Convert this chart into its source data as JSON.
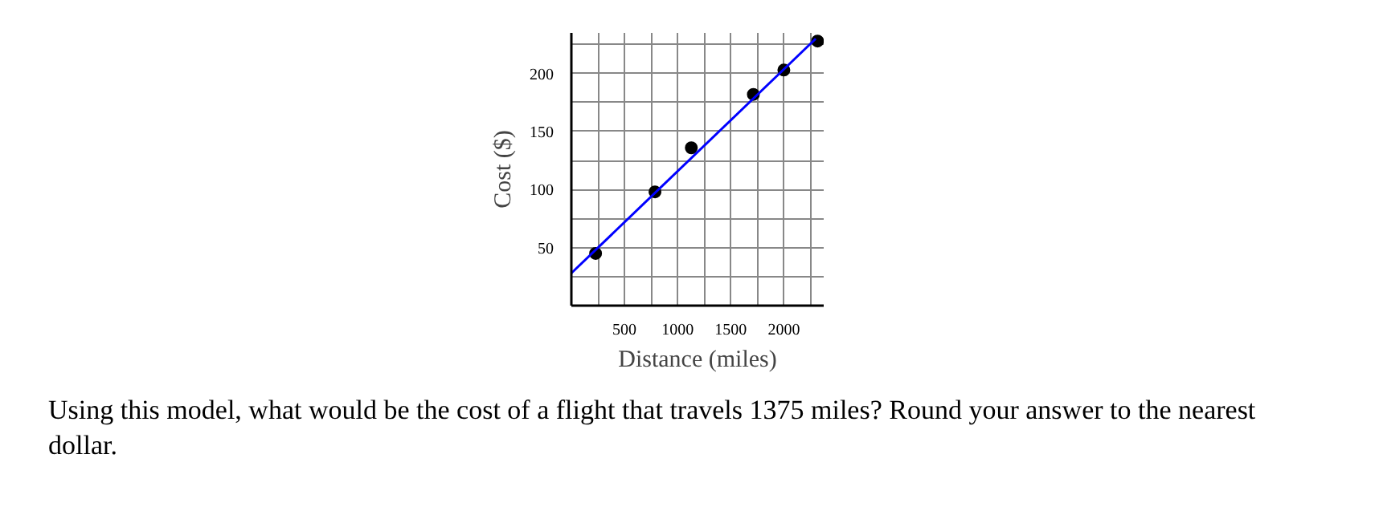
{
  "chart_data": {
    "type": "scatter",
    "xlabel": "Distance (miles)",
    "ylabel": "Cost ($)",
    "xlim": [
      0,
      2375
    ],
    "ylim": [
      0,
      235
    ],
    "xticks": [
      {
        "value": 250,
        "label": null
      },
      500,
      {
        "value": 750,
        "label": null
      },
      1000,
      {
        "value": 1250,
        "label": null
      },
      1500,
      {
        "value": 1750,
        "label": null
      },
      2000,
      {
        "value": 2250,
        "label": null
      }
    ],
    "yticks": [
      {
        "value": 25,
        "label": null
      },
      50,
      {
        "value": 75,
        "label": null
      },
      100,
      {
        "value": 125,
        "label": null
      },
      150,
      {
        "value": 175,
        "label": null
      },
      200,
      {
        "value": 225,
        "label": null
      }
    ],
    "grid": true,
    "marker": "circle",
    "series": [
      {
        "color": "#000000",
        "x": [
          228,
          787,
          1129,
          1713,
          2000,
          2317
        ],
        "values": [
          45,
          98,
          136,
          182,
          203,
          228
        ]
      },
      {
        "type": "line",
        "color": "#0000ff",
        "x": [
          0,
          2300
        ],
        "values": [
          28,
          230
        ],
        "marker": "none",
        "line_style": "solid"
      }
    ],
    "annotations": [
      "Using this model, what would be the cost of a flight that travels 1375 miles?  Round your answer to the nearest dollar."
    ]
  }
}
